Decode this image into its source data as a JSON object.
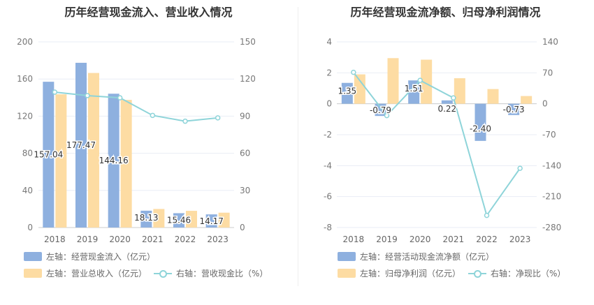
{
  "colors": {
    "bar_primary": "#8eb0df",
    "bar_secondary": "#fddca3",
    "line": "#8ed4d9",
    "grid": "#e9edf5",
    "axis_text": "#666666"
  },
  "left": {
    "title": "历年经营现金流入、营业收入情况",
    "legend": {
      "primary": "左轴：经营现金流入（亿元）",
      "secondary": "左轴：营业总收入（亿元）",
      "line": "右轴：营收现金比（%）"
    }
  },
  "right": {
    "title": "历年经营现金流净额、归母净利润情况",
    "legend": {
      "primary": "左轴：经营活动现金流净额（亿元）",
      "secondary": "左轴：归母净利润（亿元）",
      "line": "右轴：净现比（%）"
    }
  },
  "chart_data": [
    {
      "type": "bar",
      "categories": [
        "2018",
        "2019",
        "2020",
        "2021",
        "2022",
        "2023"
      ],
      "series": [
        {
          "name": "左轴：经营现金流入（亿元）",
          "axis": "left",
          "type": "bar",
          "values": [
            157.04,
            177.47,
            144.16,
            18.13,
            15.46,
            14.17
          ],
          "labels": [
            "157.04",
            "177.47",
            "144.16",
            "18.13",
            "15.46",
            "14.17"
          ]
        },
        {
          "name": "左轴：营业总收入（亿元）",
          "axis": "left",
          "type": "bar",
          "values": [
            143.5,
            166.5,
            137.5,
            20.0,
            18.0,
            16.0
          ]
        },
        {
          "name": "右轴：营收现金比（%）",
          "axis": "right",
          "type": "line",
          "values": [
            109.4,
            106.6,
            104.8,
            90.6,
            85.9,
            88.6
          ]
        }
      ],
      "left_axis": {
        "min": 0,
        "max": 200,
        "ticks": [
          "0",
          "40",
          "80",
          "120",
          "160",
          "200"
        ]
      },
      "right_axis": {
        "min": 0,
        "max": 150,
        "ticks": [
          "0",
          "30",
          "60",
          "90",
          "120",
          "150"
        ]
      }
    },
    {
      "type": "bar",
      "categories": [
        "2018",
        "2019",
        "2020",
        "2021",
        "2022",
        "2023"
      ],
      "series": [
        {
          "name": "左轴：经营活动现金流净额（亿元）",
          "axis": "left",
          "type": "bar",
          "values": [
            1.35,
            -0.79,
            1.51,
            0.22,
            -2.4,
            -0.73
          ],
          "labels": [
            "1.35",
            "-0.79",
            "1.51",
            "0.22",
            "-2.40",
            "-0.73"
          ]
        },
        {
          "name": "左轴：归母净利润（亿元）",
          "axis": "left",
          "type": "bar",
          "values": [
            1.9,
            2.95,
            2.85,
            1.65,
            0.95,
            0.5
          ]
        },
        {
          "name": "右轴：净现比（%）",
          "axis": "right",
          "type": "line",
          "values": [
            71.1,
            -26.8,
            53.0,
            13.3,
            -252.6,
            -146.0
          ]
        }
      ],
      "left_axis": {
        "min": -8,
        "max": 4,
        "ticks": [
          "-8",
          "-6",
          "-4",
          "-2",
          "0",
          "2",
          "4"
        ]
      },
      "right_axis": {
        "min": -280,
        "max": 140,
        "ticks": [
          "-280",
          "-210",
          "-140",
          "-70",
          "0",
          "70",
          "140"
        ]
      }
    }
  ]
}
